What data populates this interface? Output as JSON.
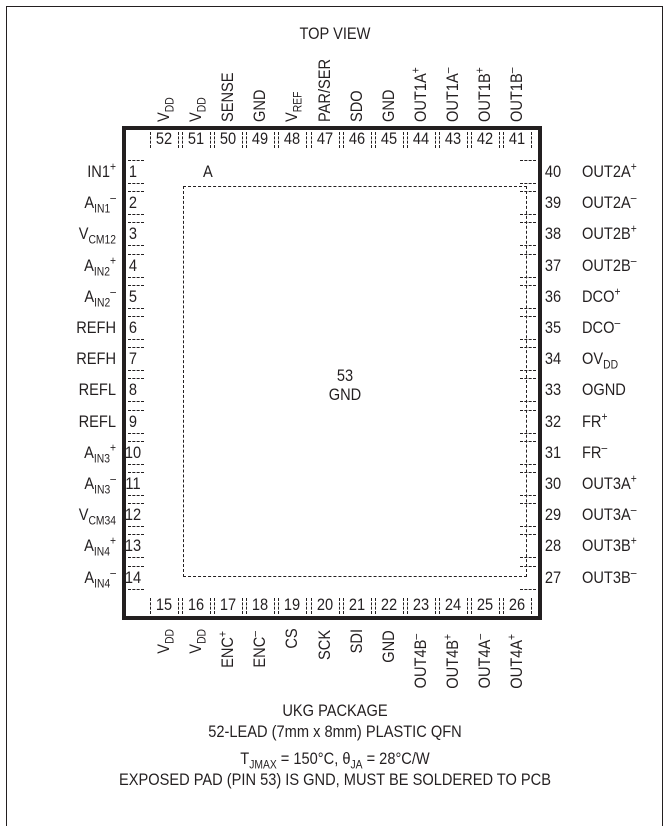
{
  "title": "TOP VIEW",
  "pin1_marker": "A",
  "exposed_pad": {
    "number": "53",
    "name": "GND"
  },
  "top_pins": [
    {
      "num": "52",
      "name": "V",
      "sub": "DD",
      "sup": ""
    },
    {
      "num": "51",
      "name": "V",
      "sub": "DD",
      "sup": ""
    },
    {
      "num": "50",
      "name": "SENSE",
      "sub": "",
      "sup": ""
    },
    {
      "num": "49",
      "name": "GND",
      "sub": "",
      "sup": ""
    },
    {
      "num": "48",
      "name": "V",
      "sub": "REF",
      "sup": ""
    },
    {
      "num": "47",
      "name": "PAR/SER",
      "sub": "",
      "sup": ""
    },
    {
      "num": "46",
      "name": "SDO",
      "sub": "",
      "sup": ""
    },
    {
      "num": "45",
      "name": "GND",
      "sub": "",
      "sup": ""
    },
    {
      "num": "44",
      "name": "OUT1A",
      "sub": "",
      "sup": "+"
    },
    {
      "num": "43",
      "name": "OUT1A",
      "sub": "",
      "sup": "–"
    },
    {
      "num": "42",
      "name": "OUT1B",
      "sub": "",
      "sup": "+"
    },
    {
      "num": "41",
      "name": "OUT1B",
      "sub": "",
      "sup": "–"
    }
  ],
  "bottom_pins": [
    {
      "num": "15",
      "name": "V",
      "sub": "DD",
      "sup": ""
    },
    {
      "num": "16",
      "name": "V",
      "sub": "DD",
      "sup": ""
    },
    {
      "num": "17",
      "name": "ENC",
      "sub": "",
      "sup": "+"
    },
    {
      "num": "18",
      "name": "ENC",
      "sub": "",
      "sup": "–"
    },
    {
      "num": "19",
      "name": "CS",
      "sub": "",
      "sup": ""
    },
    {
      "num": "20",
      "name": "SCK",
      "sub": "",
      "sup": ""
    },
    {
      "num": "21",
      "name": "SDI",
      "sub": "",
      "sup": ""
    },
    {
      "num": "22",
      "name": "GND",
      "sub": "",
      "sup": ""
    },
    {
      "num": "23",
      "name": "OUT4B",
      "sub": "",
      "sup": "–"
    },
    {
      "num": "24",
      "name": "OUT4B",
      "sub": "",
      "sup": "+"
    },
    {
      "num": "25",
      "name": "OUT4A",
      "sub": "",
      "sup": "–"
    },
    {
      "num": "26",
      "name": "OUT4A",
      "sub": "",
      "sup": "+"
    }
  ],
  "left_pins": [
    {
      "num": "1",
      "name": "IN1",
      "sub": "",
      "sup": "+"
    },
    {
      "num": "2",
      "name": "A",
      "sub": "IN1",
      "sup": "–"
    },
    {
      "num": "3",
      "name": "V",
      "sub": "CM12",
      "sup": ""
    },
    {
      "num": "4",
      "name": "A",
      "sub": "IN2",
      "sup": "+"
    },
    {
      "num": "5",
      "name": "A",
      "sub": "IN2",
      "sup": "–"
    },
    {
      "num": "6",
      "name": "REFH",
      "sub": "",
      "sup": ""
    },
    {
      "num": "7",
      "name": "REFH",
      "sub": "",
      "sup": ""
    },
    {
      "num": "8",
      "name": "REFL",
      "sub": "",
      "sup": ""
    },
    {
      "num": "9",
      "name": "REFL",
      "sub": "",
      "sup": ""
    },
    {
      "num": "10",
      "name": "A",
      "sub": "IN3",
      "sup": "+"
    },
    {
      "num": "11",
      "name": "A",
      "sub": "IN3",
      "sup": "–"
    },
    {
      "num": "12",
      "name": "V",
      "sub": "CM34",
      "sup": ""
    },
    {
      "num": "13",
      "name": "A",
      "sub": "IN4",
      "sup": "+"
    },
    {
      "num": "14",
      "name": "A",
      "sub": "IN4",
      "sup": "–"
    }
  ],
  "right_pins": [
    {
      "num": "40",
      "name": "OUT2A",
      "sub": "",
      "sup": "+"
    },
    {
      "num": "39",
      "name": "OUT2A",
      "sub": "",
      "sup": "–"
    },
    {
      "num": "38",
      "name": "OUT2B",
      "sub": "",
      "sup": "+"
    },
    {
      "num": "37",
      "name": "OUT2B",
      "sub": "",
      "sup": "–"
    },
    {
      "num": "36",
      "name": "DCO",
      "sub": "",
      "sup": "+"
    },
    {
      "num": "35",
      "name": "DCO",
      "sub": "",
      "sup": "–"
    },
    {
      "num": "34",
      "name": "OV",
      "sub": "DD",
      "sup": ""
    },
    {
      "num": "33",
      "name": "OGND",
      "sub": "",
      "sup": ""
    },
    {
      "num": "32",
      "name": "FR",
      "sub": "",
      "sup": "+"
    },
    {
      "num": "31",
      "name": "FR",
      "sub": "",
      "sup": "–"
    },
    {
      "num": "30",
      "name": "OUT3A",
      "sub": "",
      "sup": "+"
    },
    {
      "num": "29",
      "name": "OUT3A",
      "sub": "",
      "sup": "–"
    },
    {
      "num": "28",
      "name": "OUT3B",
      "sub": "",
      "sup": "+"
    },
    {
      "num": "27",
      "name": "OUT3B",
      "sub": "",
      "sup": "–"
    }
  ],
  "caption": {
    "line1": "UKG PACKAGE",
    "line2": "52-LEAD (7mm x 8mm) PLASTIC QFN",
    "line3": "T",
    "line3_sub": "JMAX",
    "line3_rest": " = 150°C, θ",
    "line3_sub2": "JA",
    "line3_end": " = 28°C/W",
    "line4": "EXPOSED PAD (PIN 53) IS GND, MUST BE SOLDERED TO PCB"
  }
}
